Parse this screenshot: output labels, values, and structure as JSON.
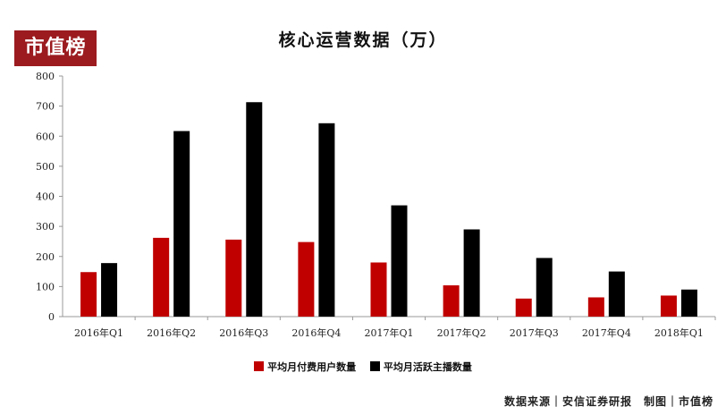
{
  "logo_text": "市值榜",
  "chart_data": {
    "type": "bar",
    "title": "核心运营数据（万）",
    "categories": [
      "2016年Q1",
      "2016年Q2",
      "2016年Q3",
      "2016年Q4",
      "2017年Q1",
      "2017年Q2",
      "2017年Q3",
      "2017年Q4",
      "2018年Q1"
    ],
    "series": [
      {
        "name": "平均月付费用户数量",
        "color": "#c00000",
        "values": [
          148,
          262,
          256,
          248,
          180,
          104,
          60,
          64,
          70
        ]
      },
      {
        "name": "平均月活跃主播数量",
        "color": "#000000",
        "values": [
          178,
          617,
          713,
          643,
          370,
          290,
          195,
          150,
          90
        ]
      }
    ],
    "ylim": [
      0,
      800
    ],
    "yticks": [
      0,
      100,
      200,
      300,
      400,
      500,
      600,
      700,
      800
    ],
    "legend_position": "bottom",
    "grid": false
  },
  "source_text": "数据来源｜安信证券研报　制图｜市值榜"
}
